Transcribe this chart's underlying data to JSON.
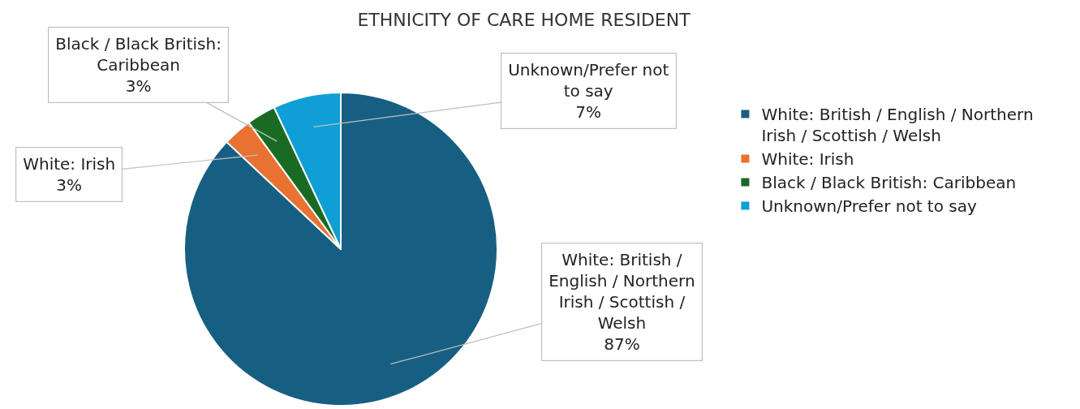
{
  "chart_data": {
    "type": "pie",
    "title": "ETHNICITY OF CARE HOME RESIDENT",
    "categories": [
      "White: British / English / Northern Irish / Scottish / Welsh",
      "White: Irish",
      "Black / Black British: Caribbean",
      "Unknown/Prefer not to say"
    ],
    "values": [
      87,
      3,
      3,
      7
    ],
    "value_labels": [
      "87%",
      "3%",
      "3%",
      "7%"
    ],
    "colors": [
      "#175f82",
      "#e97132",
      "#196b24",
      "#0f9ed5"
    ],
    "legend": "right"
  }
}
